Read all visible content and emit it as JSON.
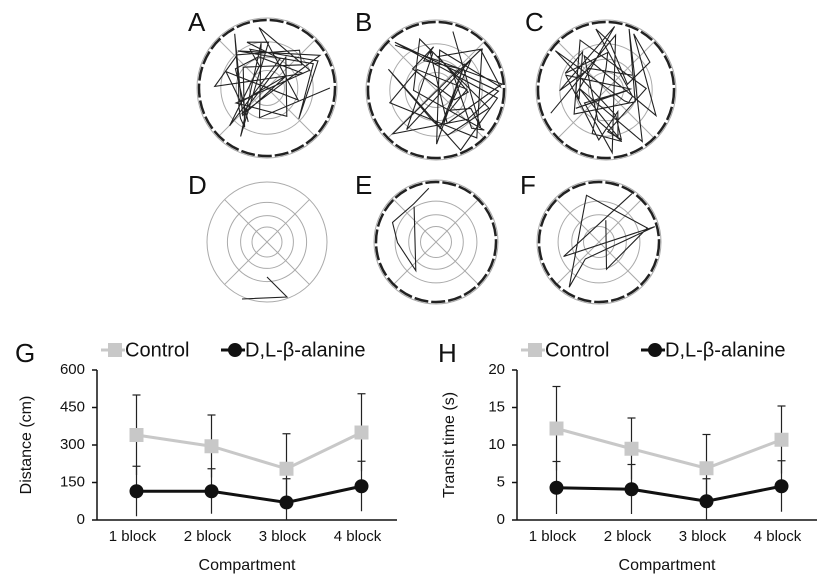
{
  "panel_labels": [
    "A",
    "B",
    "C",
    "D",
    "E",
    "F"
  ],
  "chart_data": [
    {
      "type": "line",
      "panel_label": "G",
      "y_label": "Distance (cm)",
      "x_label": "Compartment",
      "categories": [
        "1 block",
        "2 block",
        "3 block",
        "4 block"
      ],
      "series": [
        {
          "name": "Control",
          "color": "#c8c8c8",
          "marker": "square",
          "values": [
            340,
            295,
            205,
            350
          ],
          "errors": [
            160,
            125,
            140,
            155
          ]
        },
        {
          "name": "D,L-β-alanine",
          "color": "#111111",
          "marker": "circle",
          "values": [
            115,
            115,
            70,
            135
          ],
          "errors": [
            100,
            90,
            95,
            100
          ]
        }
      ],
      "ylim": [
        0,
        600
      ],
      "yticks": [
        0,
        150,
        300,
        450,
        600
      ]
    },
    {
      "type": "line",
      "panel_label": "H",
      "y_label": "Transit time (s)",
      "x_label": "Compartment",
      "categories": [
        "1 block",
        "2 block",
        "3 block",
        "4 block"
      ],
      "series": [
        {
          "name": "Control",
          "color": "#c8c8c8",
          "marker": "square",
          "values": [
            12.2,
            9.5,
            6.9,
            10.7
          ],
          "errors": [
            5.6,
            4.1,
            4.5,
            4.5
          ]
        },
        {
          "name": "D,L-β-alanine",
          "color": "#111111",
          "marker": "circle",
          "values": [
            4.3,
            4.1,
            2.5,
            4.5
          ],
          "errors": [
            3.5,
            3.3,
            3.0,
            3.4
          ]
        }
      ],
      "ylim": [
        0,
        20
      ],
      "yticks": [
        0,
        5,
        10,
        15,
        20
      ]
    }
  ]
}
